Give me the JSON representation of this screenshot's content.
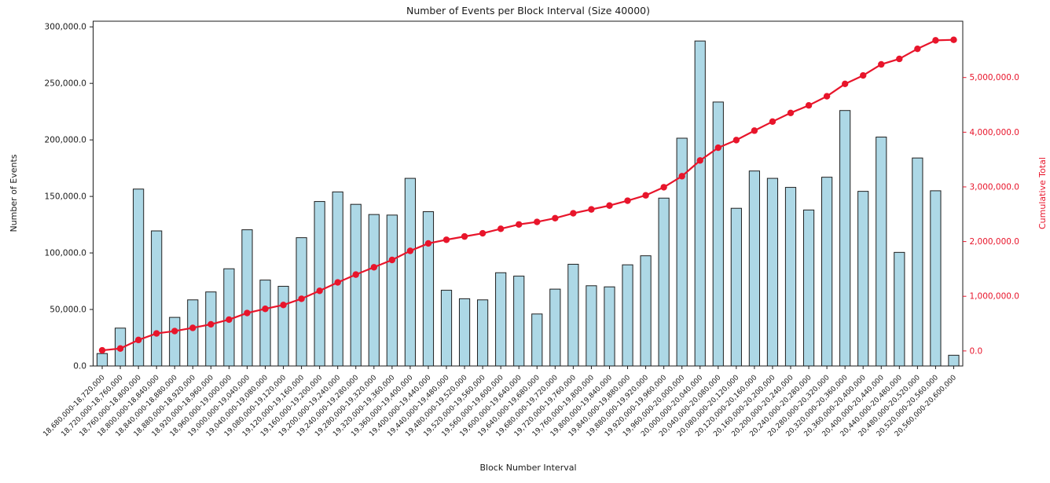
{
  "chart_data": {
    "type": "bar",
    "title": "Number of Events per Block Interval (Size 40000)",
    "xlabel": "Block Number Interval",
    "ylabel_left": "Number of Events",
    "ylabel_right": "Cumulative Total",
    "grid": false,
    "legend": "none",
    "colors": {
      "bar_fill": "#add8e6",
      "bar_edge": "#1f1f1f",
      "line": "#e8152b",
      "axis": "#1a1a1a",
      "right_axis_text": "#e8152b"
    },
    "categories": [
      "18,680,000-18,720,000",
      "18,720,000-18,760,000",
      "18,760,000-18,800,000",
      "18,800,000-18,840,000",
      "18,840,000-18,880,000",
      "18,880,000-18,920,000",
      "18,920,000-18,960,000",
      "18,960,000-19,000,000",
      "19,000,000-19,040,000",
      "19,040,000-19,080,000",
      "19,080,000-19,120,000",
      "19,120,000-19,160,000",
      "19,160,000-19,200,000",
      "19,200,000-19,240,000",
      "19,240,000-19,280,000",
      "19,280,000-19,320,000",
      "19,320,000-19,360,000",
      "19,360,000-19,400,000",
      "19,400,000-19,440,000",
      "19,440,000-19,480,000",
      "19,480,000-19,520,000",
      "19,520,000-19,560,000",
      "19,560,000-19,600,000",
      "19,600,000-19,640,000",
      "19,640,000-19,680,000",
      "19,680,000-19,720,000",
      "19,720,000-19,760,000",
      "19,760,000-19,800,000",
      "19,800,000-19,840,000",
      "19,840,000-19,880,000",
      "19,880,000-19,920,000",
      "19,920,000-19,960,000",
      "19,960,000-20,000,000",
      "20,000,000-20,040,000",
      "20,040,000-20,080,000",
      "20,080,000-20,120,000",
      "20,120,000-20,160,000",
      "20,160,000-20,200,000",
      "20,200,000-20,240,000",
      "20,240,000-20,280,000",
      "20,280,000-20,320,000",
      "20,320,000-20,360,000",
      "20,360,000-20,400,000",
      "20,400,000-20,440,000",
      "20,440,000-20,480,000",
      "20,480,000-20,520,000",
      "20,520,000-20,560,000",
      "20,560,000-20,600,000"
    ],
    "series": [
      {
        "name": "Number of Events",
        "type": "bar",
        "values": [
          11000,
          33500,
          156500,
          119500,
          43000,
          58500,
          65500,
          86000,
          120500,
          76000,
          70500,
          113500,
          145500,
          154000,
          143000,
          134000,
          133500,
          166000,
          136500,
          67000,
          59500,
          58500,
          82500,
          79500,
          46000,
          68000,
          90000,
          71000,
          70000,
          89500,
          97500,
          148500,
          201500,
          287500,
          233500,
          139500,
          172500,
          166000,
          158000,
          138000,
          167000,
          226000,
          154500,
          202500,
          100500,
          184000,
          155000,
          9500
        ]
      },
      {
        "name": "Cumulative Total",
        "type": "line",
        "values": [
          11000,
          44500,
          201000,
          320500,
          363500,
          422000,
          487500,
          573500,
          694000,
          770000,
          840500,
          954000,
          1099500,
          1253500,
          1396500,
          1530500,
          1664000,
          1830000,
          1966500,
          2033500,
          2093000,
          2151500,
          2234000,
          2313500,
          2359500,
          2427500,
          2517500,
          2588500,
          2658500,
          2748000,
          2845500,
          2994000,
          3195500,
          3483000,
          3716500,
          3856000,
          4028500,
          4194500,
          4352500,
          4490500,
          4657500,
          4883500,
          5038000,
          5240500,
          5341000,
          5525000,
          5680000,
          5689500
        ]
      }
    ],
    "left_axis": {
      "tick_labels": [
        "0.0",
        "50,000.0",
        "100,000.0",
        "150,000.0",
        "200,000.0",
        "250,000.0",
        "300,000.0"
      ],
      "tick_values": [
        0,
        50000,
        100000,
        150000,
        200000,
        250000,
        300000
      ],
      "lim": [
        0,
        305000
      ]
    },
    "right_axis": {
      "tick_labels": [
        "0.0",
        "1,000,000.0",
        "2,000,000.0",
        "3,000,000.0",
        "4,000,000.0",
        "5,000,000.0"
      ],
      "tick_values": [
        0,
        1000000,
        2000000,
        3000000,
        4000000,
        5000000
      ],
      "lim": [
        -275000,
        6030000
      ]
    }
  }
}
